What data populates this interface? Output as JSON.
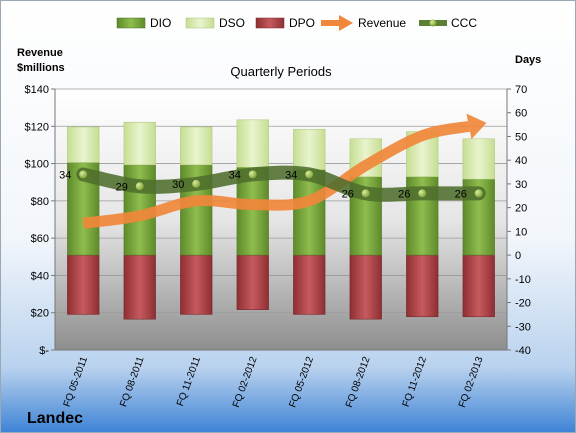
{
  "chart_data": {
    "type": "bar",
    "title": "Quarterly Periods",
    "company": "Landec",
    "left_axis_label": [
      "Revenue",
      "$millions"
    ],
    "right_axis_label": "Days",
    "categories": [
      "FQ 05-2011",
      "FQ 08-2011",
      "FQ 11-2011",
      "FQ 02-2012",
      "FQ 05-2012",
      "FQ 08-2012",
      "FQ 11-2012",
      "FQ 02-2013"
    ],
    "left_ticks": [
      "$-",
      "$20",
      "$40",
      "$60",
      "$80",
      "$100",
      "$120",
      "$140"
    ],
    "left_ylim": [
      0,
      140
    ],
    "right_ticks": [
      "-40",
      "-30",
      "-20",
      "-10",
      "0",
      "10",
      "20",
      "30",
      "40",
      "50",
      "60",
      "70"
    ],
    "right_ylim": [
      -40,
      70
    ],
    "series": [
      {
        "name": "DIO",
        "axis": "right",
        "color": "#7fa83e",
        "values": [
          39,
          38,
          38,
          37,
          36,
          33,
          33,
          32
        ]
      },
      {
        "name": "DSO",
        "axis": "right",
        "color": "#d4e8a6",
        "values": [
          15,
          18,
          16,
          20,
          17,
          16,
          19,
          17
        ]
      },
      {
        "name": "DPO",
        "axis": "right",
        "color": "#b5484d",
        "values": [
          -25,
          -27,
          -25,
          -23,
          -25,
          -27,
          -26,
          -26
        ]
      },
      {
        "name": "Revenue",
        "axis": "left",
        "color": "#f0873a",
        "values": [
          68,
          72,
          80,
          78,
          80,
          99,
          115,
          121
        ]
      },
      {
        "name": "CCC",
        "axis": "right",
        "color": "#5b7f35",
        "values": [
          34,
          29,
          30,
          34,
          34,
          26,
          26,
          26
        ]
      }
    ],
    "ccc_labels": [
      "34",
      "29",
      "30",
      "34",
      "34",
      "26",
      "26",
      "26"
    ],
    "grid": true,
    "legend_position": "top"
  }
}
